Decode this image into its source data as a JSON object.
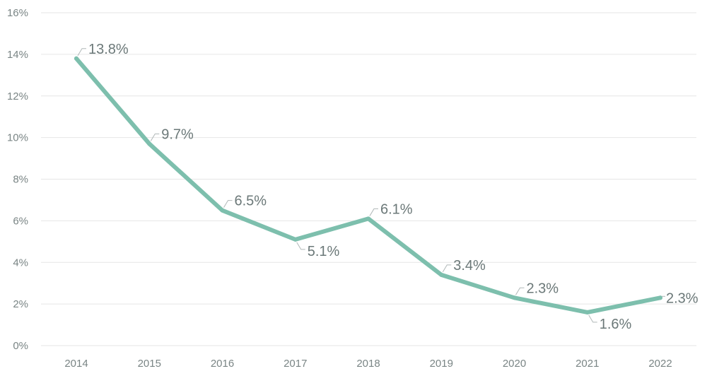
{
  "chart_data": {
    "type": "line",
    "title": "",
    "xlabel": "",
    "ylabel": "",
    "x": [
      "2014",
      "2015",
      "2016",
      "2017",
      "2018",
      "2019",
      "2020",
      "2021",
      "2022"
    ],
    "series": [
      {
        "values": [
          13.8,
          9.7,
          6.5,
          5.1,
          6.1,
          3.4,
          2.3,
          1.6,
          2.3
        ],
        "color": "#7dbfad"
      }
    ],
    "data_labels": [
      "13.8%",
      "9.7%",
      "6.5%",
      "5.1%",
      "6.1%",
      "3.4%",
      "2.3%",
      "1.6%",
      "2.3%"
    ],
    "label_side": [
      "above",
      "above",
      "above",
      "below",
      "above",
      "above",
      "above",
      "below",
      "right"
    ],
    "ylim": [
      0,
      16
    ],
    "yticks": [
      0,
      2,
      4,
      6,
      8,
      10,
      12,
      14,
      16
    ],
    "ytick_labels": [
      "0%",
      "2%",
      "4%",
      "6%",
      "8%",
      "10%",
      "12%",
      "14%",
      "16%"
    ],
    "grid": true
  }
}
